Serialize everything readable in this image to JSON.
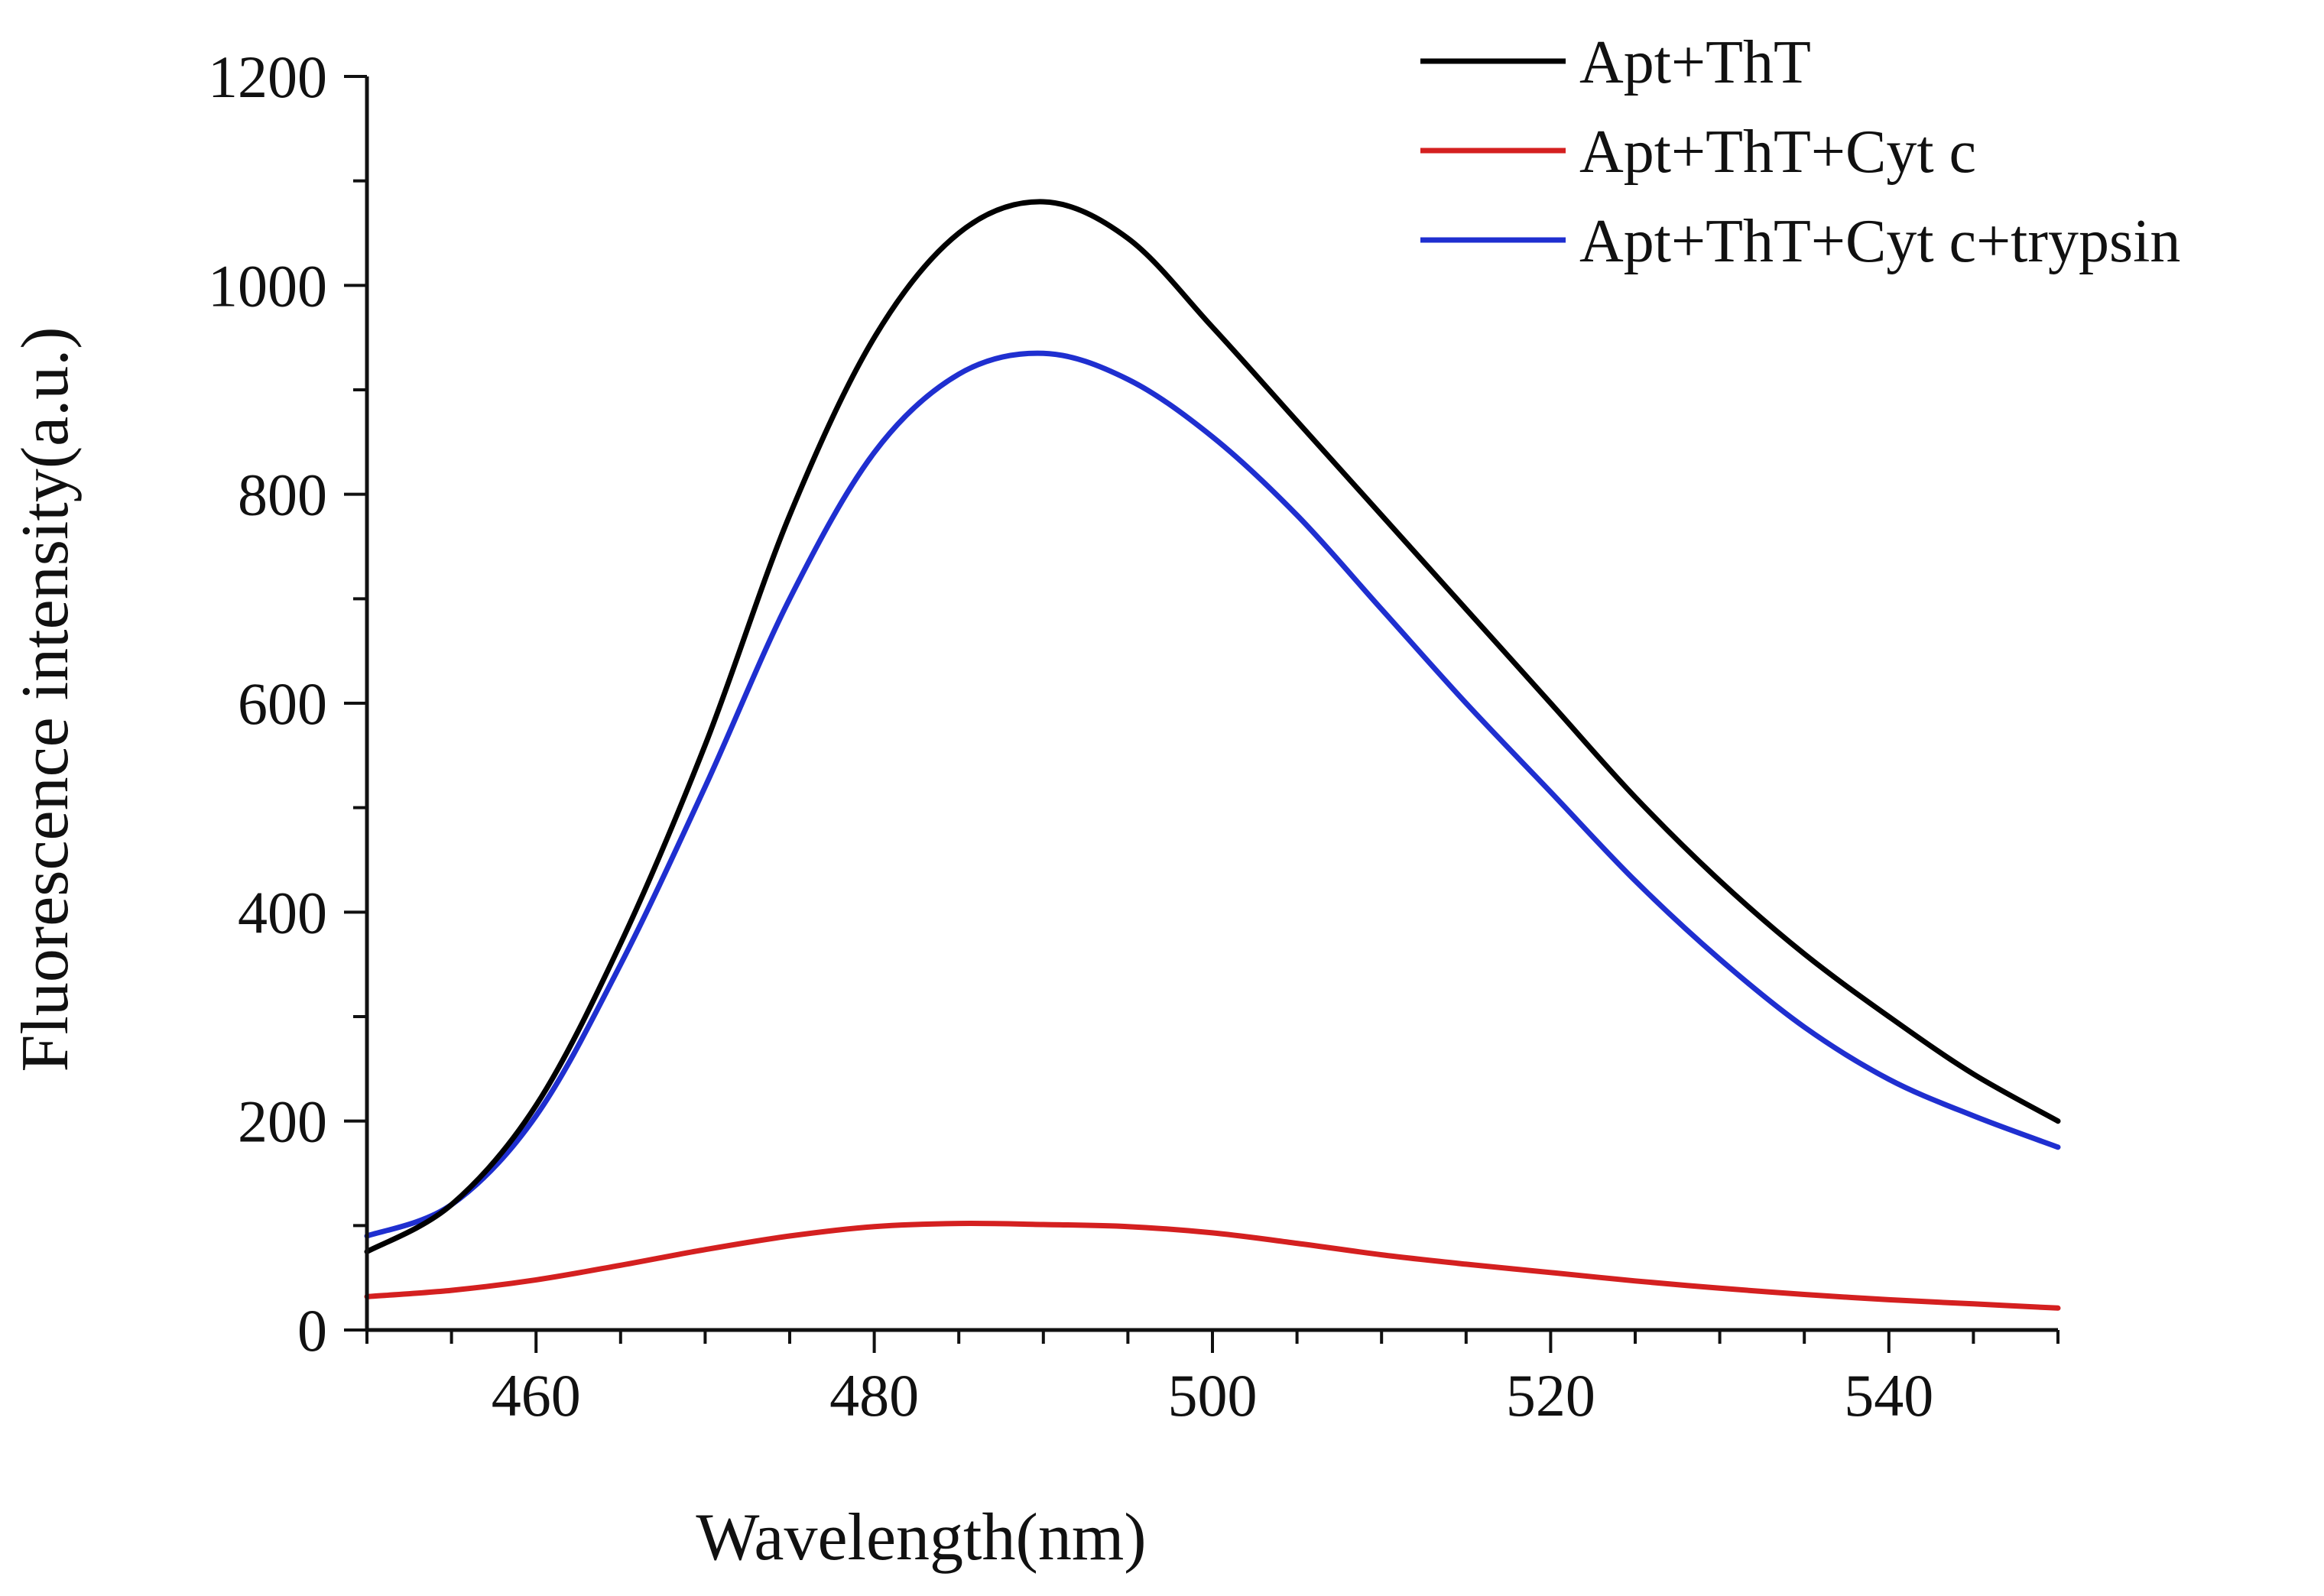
{
  "chart_data": {
    "type": "line",
    "title": "",
    "xlabel": "Wavelength(nm)",
    "ylabel": "Fluorescence intensity(a.u.)",
    "xlim": [
      450,
      550
    ],
    "ylim": [
      0,
      1200
    ],
    "x_ticks": [
      460,
      480,
      500,
      520,
      540
    ],
    "y_ticks": [
      0,
      200,
      400,
      600,
      800,
      1000,
      1200
    ],
    "x_minor_step": 5,
    "y_minor_step": 100,
    "legend_position": "top-right",
    "x": [
      450,
      455,
      460,
      465,
      470,
      475,
      480,
      485,
      490,
      495,
      500,
      505,
      510,
      515,
      520,
      525,
      530,
      535,
      540,
      545,
      550
    ],
    "series": [
      {
        "name": "Apt+ThT",
        "color": "#000000",
        "values": [
          75,
          120,
          215,
          370,
          560,
          780,
          950,
          1050,
          1080,
          1045,
          960,
          870,
          780,
          690,
          600,
          510,
          430,
          360,
          300,
          245,
          200
        ]
      },
      {
        "name": "Apt+ThT+Cyt c",
        "color": "#d42020",
        "values": [
          32,
          38,
          48,
          62,
          77,
          90,
          99,
          102,
          101,
          99,
          93,
          83,
          72,
          63,
          55,
          47,
          40,
          34,
          29,
          25,
          21
        ]
      },
      {
        "name": "Apt+ThT+Cyt c+trypsin",
        "color": "#1f2fd0",
        "values": [
          90,
          120,
          205,
          350,
          520,
          700,
          840,
          915,
          935,
          910,
          855,
          780,
          690,
          600,
          515,
          430,
          355,
          290,
          240,
          205,
          175
        ]
      }
    ]
  }
}
